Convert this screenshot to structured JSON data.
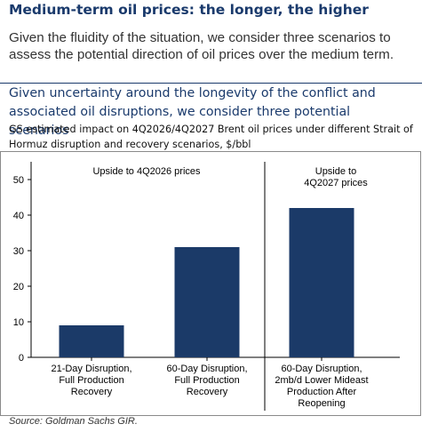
{
  "header": {
    "title": "Medium-term oil prices: the longer, the higher",
    "intro": "Given the fluidity of the situation, we consider three scenarios to assess the potential direction of oil prices over the medium term."
  },
  "chart_data": {
    "type": "bar",
    "title": "Given uncertainty around the longevity of the conflict and associated oil disruptions, we consider three potential scenarios",
    "subtitle": "GS estimated impact on 4Q2026/4Q2027 Brent oil prices under different Strait of Hormuz disruption and recovery scenarios, $/bbl",
    "categories": [
      [
        "21-Day Disruption,",
        "Full Production",
        "Recovery"
      ],
      [
        "60-Day Disruption,",
        "Full Production",
        "Recovery"
      ],
      [
        "60-Day Disruption,",
        "2mb/d Lower Mideast",
        "Production After",
        "Reopening"
      ]
    ],
    "values": [
      9,
      31,
      42
    ],
    "ylim": [
      0,
      55
    ],
    "yticks": [
      0,
      10,
      20,
      30,
      40,
      50
    ],
    "bar_color": "#1b3a68",
    "grid": false,
    "annotations": [
      {
        "lines": [
          "Upside to 4Q2026 prices"
        ],
        "group": "left"
      },
      {
        "lines": [
          "Upside to",
          "4Q2027 prices"
        ],
        "group": "right"
      }
    ],
    "source": "Source: Goldman Sachs GIR."
  }
}
